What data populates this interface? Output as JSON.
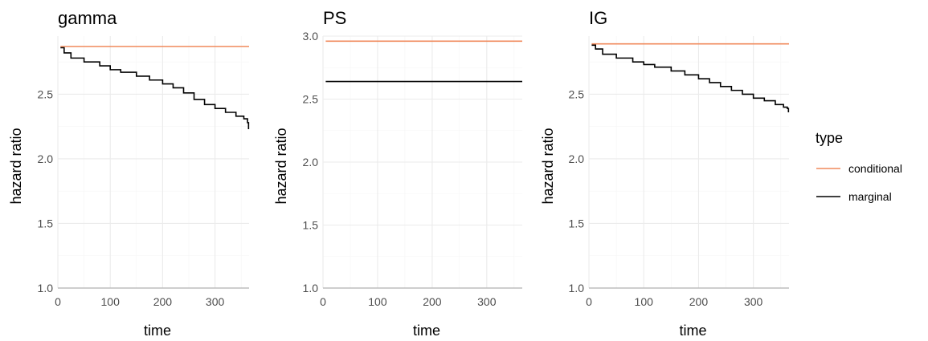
{
  "chart_data": [
    {
      "type": "line",
      "title": "gamma",
      "xlabel": "time",
      "ylabel": "hazard ratio",
      "xlim": [
        0,
        365
      ],
      "ylim": [
        1.0,
        2.95
      ],
      "x_ticks": [
        0,
        100,
        200,
        300
      ],
      "y_ticks": [
        1.0,
        1.5,
        2.0,
        2.5
      ],
      "reference_line": 1.0,
      "series": [
        {
          "name": "conditional",
          "color": "#f08a5c",
          "x": [
            5,
            365
          ],
          "y": [
            2.87,
            2.87
          ]
        },
        {
          "name": "marginal",
          "color": "#000000",
          "x": [
            5,
            12,
            25,
            50,
            80,
            100,
            120,
            150,
            175,
            200,
            220,
            240,
            260,
            280,
            300,
            320,
            340,
            355,
            362,
            364
          ],
          "y": [
            2.86,
            2.82,
            2.78,
            2.75,
            2.72,
            2.69,
            2.67,
            2.64,
            2.61,
            2.58,
            2.55,
            2.51,
            2.46,
            2.42,
            2.39,
            2.36,
            2.33,
            2.31,
            2.28,
            2.23
          ]
        }
      ]
    },
    {
      "type": "line",
      "title": "PS",
      "xlabel": "time",
      "ylabel": "hazard ratio",
      "xlim": [
        0,
        365
      ],
      "ylim": [
        1.0,
        3.0
      ],
      "x_ticks": [
        0,
        100,
        200,
        300
      ],
      "y_ticks": [
        1.0,
        1.5,
        2.0,
        2.5,
        3.0
      ],
      "reference_line": 1.0,
      "series": [
        {
          "name": "conditional",
          "color": "#f08a5c",
          "x": [
            5,
            365
          ],
          "y": [
            2.96,
            2.96
          ]
        },
        {
          "name": "marginal",
          "color": "#000000",
          "x": [
            5,
            365
          ],
          "y": [
            2.64,
            2.64
          ]
        }
      ]
    },
    {
      "type": "line",
      "title": "IG",
      "xlabel": "time",
      "ylabel": "hazard ratio",
      "xlim": [
        0,
        365
      ],
      "ylim": [
        1.0,
        2.95
      ],
      "x_ticks": [
        0,
        100,
        200,
        300
      ],
      "y_ticks": [
        1.0,
        1.5,
        2.0,
        2.5
      ],
      "reference_line": 1.0,
      "series": [
        {
          "name": "conditional",
          "color": "#f08a5c",
          "x": [
            5,
            365
          ],
          "y": [
            2.89,
            2.89
          ]
        },
        {
          "name": "marginal",
          "color": "#000000",
          "x": [
            5,
            12,
            25,
            50,
            80,
            100,
            120,
            150,
            175,
            200,
            220,
            240,
            260,
            280,
            300,
            320,
            340,
            355,
            362,
            364
          ],
          "y": [
            2.88,
            2.85,
            2.81,
            2.78,
            2.75,
            2.73,
            2.71,
            2.68,
            2.65,
            2.62,
            2.59,
            2.56,
            2.53,
            2.5,
            2.47,
            2.45,
            2.42,
            2.4,
            2.39,
            2.36
          ]
        }
      ]
    }
  ],
  "legend": {
    "title": "type",
    "placement": "right",
    "items": [
      {
        "label": "conditional",
        "color": "#f08a5c"
      },
      {
        "label": "marginal",
        "color": "#000000"
      }
    ]
  }
}
